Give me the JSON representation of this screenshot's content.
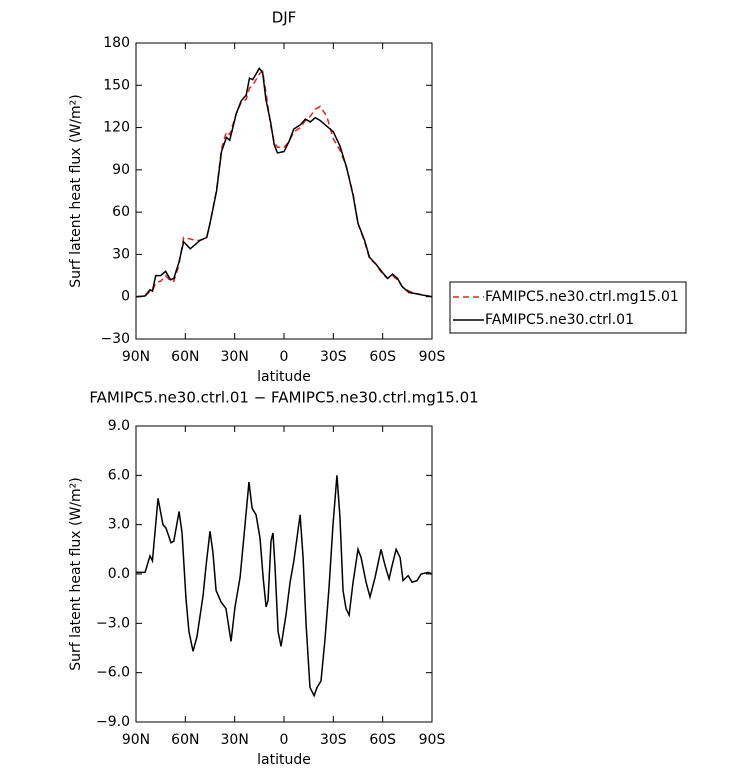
{
  "chart_data": [
    {
      "type": "line",
      "title": "DJF",
      "xlabel": "latitude",
      "ylabel": "Surf latent heat flux (W/m²)",
      "x": [
        90,
        84.5,
        81.5,
        80,
        78,
        75,
        72,
        69,
        67,
        64,
        61,
        57,
        54,
        51,
        47,
        45,
        41,
        38,
        35,
        33,
        29,
        26,
        23,
        21,
        19,
        17,
        15,
        13,
        11,
        8,
        6,
        4,
        0,
        -3,
        -6,
        -10,
        -13,
        -16,
        -19,
        -22,
        -26,
        -30,
        -34,
        -38,
        -42,
        -45,
        -49,
        -52,
        -56,
        -60,
        -63,
        -66,
        -69,
        -72,
        -76,
        -81,
        -85,
        -90
      ],
      "series": [
        {
          "name": "FAMIPC5.ne30.ctrl.mg15.01",
          "color": "#e8201c",
          "dashed": true,
          "values": [
            0,
            0.5,
            4,
            4,
            10,
            11,
            15,
            11,
            11,
            22,
            42,
            41,
            40,
            40,
            42,
            52,
            76,
            105,
            117,
            115,
            130,
            138,
            140,
            148,
            150,
            154,
            158,
            160,
            145,
            121,
            110,
            106,
            106,
            110,
            117,
            120,
            125,
            128,
            133,
            135,
            128,
            112,
            104,
            92,
            73,
            52,
            39,
            27,
            23,
            16,
            13,
            15,
            12,
            7,
            4,
            2,
            1,
            0
          ]
        },
        {
          "name": "FAMIPC5.ne30.ctrl.01",
          "color": "#000000",
          "dashed": false,
          "values": [
            0,
            0.5,
            5,
            4,
            15,
            15,
            18,
            12,
            13,
            24,
            39,
            34,
            37,
            40,
            42,
            52,
            75,
            103,
            113,
            111,
            130,
            139,
            143,
            155,
            154,
            158,
            162,
            159,
            140,
            123,
            108,
            102,
            103,
            110,
            119,
            122,
            126,
            124,
            127,
            125,
            121,
            117,
            107,
            92,
            72,
            52,
            40,
            28,
            23,
            17,
            13,
            16,
            13,
            7,
            3,
            2,
            1,
            0
          ]
        }
      ],
      "xlim": [
        90,
        -90
      ],
      "xticks": [
        {
          "value": 90,
          "label": "90N"
        },
        {
          "value": 60,
          "label": "60N"
        },
        {
          "value": 30,
          "label": "30N"
        },
        0,
        {
          "value": -30,
          "label": "30S"
        },
        {
          "value": -60,
          "label": "60S"
        },
        {
          "value": -90,
          "label": "90S"
        }
      ],
      "ylim": [
        -30,
        180
      ],
      "yticks": [
        {
          "value": -30,
          "label": "−30"
        },
        0,
        30,
        60,
        90,
        120,
        150,
        180
      ],
      "legend": "right"
    },
    {
      "type": "line",
      "title": "FAMIPC5.ne30.ctrl.01 − FAMIPC5.ne30.ctrl.mg15.01",
      "xlabel": "latitude",
      "ylabel": "Surf latent heat flux (W/m²)",
      "x": [
        90,
        84.5,
        81.5,
        80,
        76.6,
        73.6,
        71.8,
        68.7,
        67,
        63.8,
        62,
        59.6,
        57.8,
        55.3,
        52.9,
        49.2,
        47.4,
        45,
        43.2,
        41.3,
        38.3,
        35.3,
        32.2,
        29.8,
        26.7,
        23.7,
        21.3,
        19.4,
        17,
        14.6,
        12.7,
        10.9,
        9.7,
        7.9,
        6.7,
        5.5,
        3.6,
        1.8,
        -1.2,
        -3.7,
        -6,
        -7.9,
        -9.8,
        -11.6,
        -13.4,
        -15.8,
        -18.3,
        -20.1,
        -22.5,
        -24.9,
        -27.4,
        -29.8,
        -32.2,
        -34,
        -35.9,
        -37.7,
        -39.6,
        -42,
        -45,
        -46.9,
        -49.9,
        -52.3,
        -55.4,
        -59,
        -61.5,
        -63.9,
        -65.7,
        -68.2,
        -70.6,
        -72.4,
        -75.5,
        -77.9,
        -80.9,
        -83.4,
        -87.6,
        -90
      ],
      "color": "#000000",
      "values": [
        0.1,
        0.1,
        1.1,
        0.8,
        4.6,
        3,
        2.8,
        1.9,
        2,
        3.8,
        2.5,
        -1.5,
        -3.5,
        -4.7,
        -3.8,
        -1.3,
        0.5,
        2.6,
        1.3,
        -1,
        -1.7,
        -2.1,
        -4.1,
        -2,
        -0.2,
        3,
        5.6,
        4,
        3.6,
        2.2,
        -0.2,
        -2,
        -1.6,
        2,
        2.5,
        0.5,
        -3.5,
        -4.4,
        -2.5,
        -0.5,
        0.8,
        2.2,
        3.6,
        1,
        -3,
        -6.9,
        -7.4,
        -6.9,
        -6.5,
        -4,
        -0.8,
        3,
        6,
        3.5,
        -1,
        -2.1,
        -2.5,
        -0.5,
        1.5,
        1,
        -0.5,
        -1.4,
        -0.2,
        1.5,
        0.5,
        -0.3,
        0.5,
        1.5,
        1,
        -0.4,
        -0.1,
        -0.5,
        -0.4,
        0,
        0.1,
        0
      ],
      "xlim": [
        90,
        -90
      ],
      "xticks": [
        {
          "value": 90,
          "label": "90N"
        },
        {
          "value": 60,
          "label": "60N"
        },
        {
          "value": 30,
          "label": "30N"
        },
        0,
        {
          "value": -30,
          "label": "30S"
        },
        {
          "value": -60,
          "label": "60S"
        },
        {
          "value": -90,
          "label": "90S"
        }
      ],
      "ylim": [
        -9,
        9
      ],
      "yticks": [
        {
          "value": -9,
          "label": "−9.0"
        },
        {
          "value": -6,
          "label": "−6.0"
        },
        {
          "value": -3,
          "label": "−3.0"
        },
        {
          "value": 0,
          "label": "0.0"
        },
        {
          "value": 3,
          "label": "3.0"
        },
        {
          "value": 6,
          "label": "6.0"
        },
        {
          "value": 9,
          "label": "9.0"
        }
      ]
    }
  ]
}
